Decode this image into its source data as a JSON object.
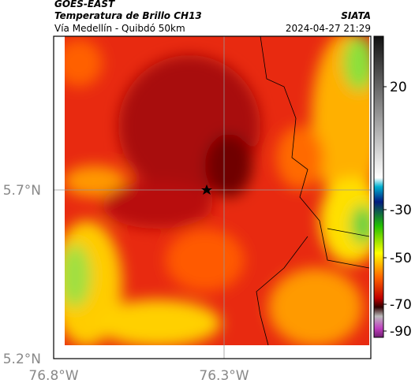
{
  "header": {
    "satellite": "GOES-EAST",
    "product": "Temperatura de Brillo CH13",
    "region": "Vía Medellín - Quibdó 50km",
    "source": "SIATA",
    "datetime": "2024-04-27 21:29"
  },
  "axes": {
    "lat_ticks": [
      "5.7°N",
      "5.2°N"
    ],
    "lon_ticks": [
      "76.8°W",
      "76.3°W"
    ]
  },
  "colorbar": {
    "ticks": [
      20,
      -30,
      -50,
      -70,
      -90
    ]
  }
}
